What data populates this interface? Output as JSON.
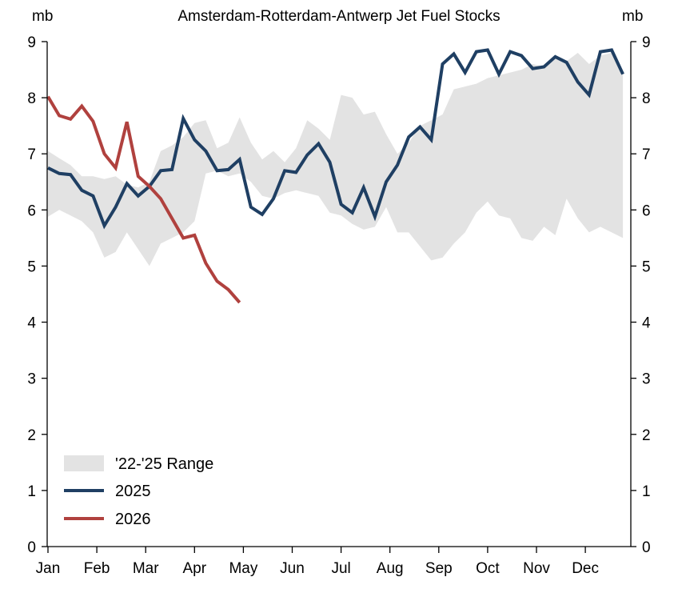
{
  "chart_data": {
    "type": "line",
    "title": "Amsterdam-Rotterdam-Antwerp Jet Fuel Stocks",
    "ylabel_left": "mb",
    "ylabel_right": "mb",
    "ylim": [
      0,
      9
    ],
    "yticks": [
      "0",
      "1",
      "2",
      "3",
      "4",
      "5",
      "6",
      "7",
      "8",
      "9"
    ],
    "month_labels": [
      "Jan",
      "Feb",
      "Mar",
      "Apr",
      "May",
      "Jun",
      "Jul",
      "Aug",
      "Sep",
      "Oct",
      "Nov",
      "Dec"
    ],
    "grid": false,
    "legend_position": "bottom-left",
    "range": {
      "name": "'22-'25 Range",
      "color": "#e3e3e3",
      "week": [
        1,
        2,
        3,
        4,
        5,
        6,
        7,
        8,
        9,
        10,
        11,
        12,
        13,
        14,
        15,
        16,
        17,
        18,
        19,
        20,
        21,
        22,
        23,
        24,
        25,
        26,
        27,
        28,
        29,
        30,
        31,
        32,
        33,
        34,
        35,
        36,
        37,
        38,
        39,
        40,
        41,
        42,
        43,
        44,
        45,
        46,
        47,
        48,
        49,
        50,
        51,
        52
      ],
      "upper": [
        7.05,
        6.92,
        6.8,
        6.6,
        6.6,
        6.55,
        6.6,
        6.45,
        6.4,
        6.5,
        7.05,
        7.15,
        7.3,
        7.55,
        7.6,
        7.1,
        7.2,
        7.65,
        7.2,
        6.9,
        7.05,
        6.85,
        7.1,
        7.6,
        7.45,
        7.25,
        8.05,
        8.0,
        7.7,
        7.75,
        7.35,
        7.0,
        7.2,
        7.5,
        7.6,
        7.7,
        8.15,
        8.2,
        8.25,
        8.35,
        8.4,
        8.45,
        8.5,
        8.6,
        8.55,
        8.7,
        8.65,
        8.8,
        8.6,
        8.75,
        8.8,
        8.4
      ],
      "lower": [
        5.88,
        6.0,
        5.9,
        5.8,
        5.6,
        5.15,
        5.25,
        5.6,
        5.3,
        5.0,
        5.4,
        5.5,
        5.6,
        5.8,
        6.65,
        6.7,
        6.6,
        6.65,
        6.5,
        6.25,
        6.2,
        6.3,
        6.35,
        6.3,
        6.25,
        5.95,
        5.9,
        5.75,
        5.65,
        5.7,
        6.05,
        5.6,
        5.6,
        5.35,
        5.1,
        5.15,
        5.4,
        5.6,
        5.95,
        6.15,
        5.9,
        5.85,
        5.5,
        5.45,
        5.7,
        5.55,
        6.2,
        5.85,
        5.6,
        5.7,
        5.6,
        5.5
      ]
    },
    "series": [
      {
        "name": "2025",
        "color": "#1f3f63",
        "week": [
          1,
          2,
          3,
          4,
          5,
          6,
          7,
          8,
          9,
          10,
          11,
          12,
          13,
          14,
          15,
          16,
          17,
          18,
          19,
          20,
          21,
          22,
          23,
          24,
          25,
          26,
          27,
          28,
          29,
          30,
          31,
          32,
          33,
          34,
          35,
          36,
          37,
          38,
          39,
          40,
          41,
          42,
          43,
          44,
          45,
          46,
          47,
          48,
          49,
          50,
          51,
          52
        ],
        "values": [
          6.75,
          6.65,
          6.63,
          6.35,
          6.25,
          5.72,
          6.05,
          6.47,
          6.25,
          6.42,
          6.7,
          6.72,
          7.63,
          7.25,
          7.05,
          6.7,
          6.72,
          6.9,
          6.05,
          5.92,
          6.2,
          6.7,
          6.67,
          6.98,
          7.18,
          6.85,
          6.1,
          5.95,
          6.4,
          5.88,
          6.5,
          6.8,
          7.3,
          7.48,
          7.25,
          8.6,
          8.78,
          8.45,
          8.82,
          8.85,
          8.42,
          8.82,
          8.75,
          8.52,
          8.55,
          8.73,
          8.63,
          8.28,
          8.05,
          8.82,
          8.85,
          8.42
        ]
      },
      {
        "name": "2026",
        "color": "#b0413e",
        "week": [
          1,
          2,
          3,
          4,
          5,
          6,
          7,
          8,
          9,
          10,
          11,
          12,
          13,
          14,
          15,
          16,
          17,
          18
        ],
        "values": [
          8.02,
          7.68,
          7.62,
          7.85,
          7.58,
          7.0,
          6.75,
          7.57,
          6.6,
          6.42,
          6.2,
          5.85,
          5.5,
          5.55,
          5.05,
          4.73,
          4.58,
          4.35
        ]
      }
    ]
  }
}
